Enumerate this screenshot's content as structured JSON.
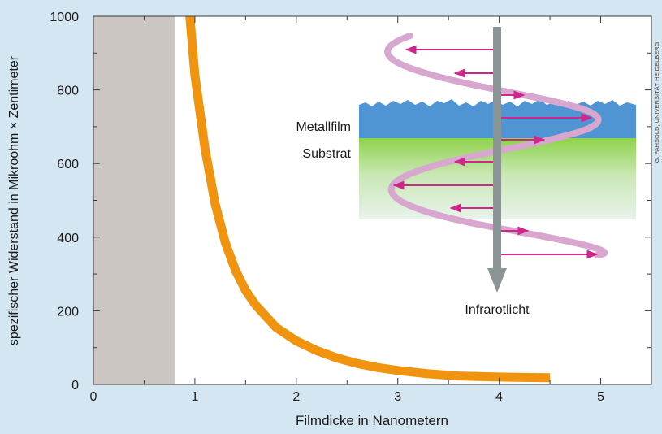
{
  "colors": {
    "page_background": "#d5e6f3",
    "plot_background": "#ffffff",
    "curve": "#f0930f",
    "shaded_region": "#cbc6c2",
    "metal_film": "#4f95d3",
    "substrate_top": "#8ed24a",
    "substrate_bottom": "#e9f3ec",
    "wave": "#d8a7cf",
    "arrows": "#d0268c",
    "light_beam": "#8b9596"
  },
  "chart_data": {
    "type": "line",
    "xlabel": "Filmdicke in Nanometern",
    "ylabel": "spezifischer Widerstand in Mikroohm × Zentimeter",
    "xlim": [
      0,
      5.5
    ],
    "ylim": [
      0,
      1000
    ],
    "xticks": [
      0,
      1,
      2,
      3,
      4,
      5
    ],
    "yticks": [
      0,
      200,
      400,
      600,
      800,
      1000
    ],
    "grid": false,
    "shaded_region": {
      "x_from": 0,
      "x_to": 0.8
    },
    "series": [
      {
        "x": [
          0.95,
          1.0,
          1.1,
          1.2,
          1.3,
          1.4,
          1.5,
          1.6,
          1.8,
          2.0,
          2.2,
          2.4,
          2.6,
          2.8,
          3.0,
          3.3,
          3.6,
          4.0,
          4.5
        ],
        "y": [
          1000,
          840,
          640,
          490,
          385,
          310,
          255,
          215,
          155,
          118,
          92,
          72,
          57,
          46,
          38,
          29,
          23,
          20,
          18
        ]
      }
    ]
  },
  "inset": {
    "label_metal": "Metallfilm",
    "label_substrate": "Substrat",
    "label_light": "Infrarotlicht"
  },
  "credit": "G. FAHSOLD, UNIVERSITÄT HEIDELBERG"
}
